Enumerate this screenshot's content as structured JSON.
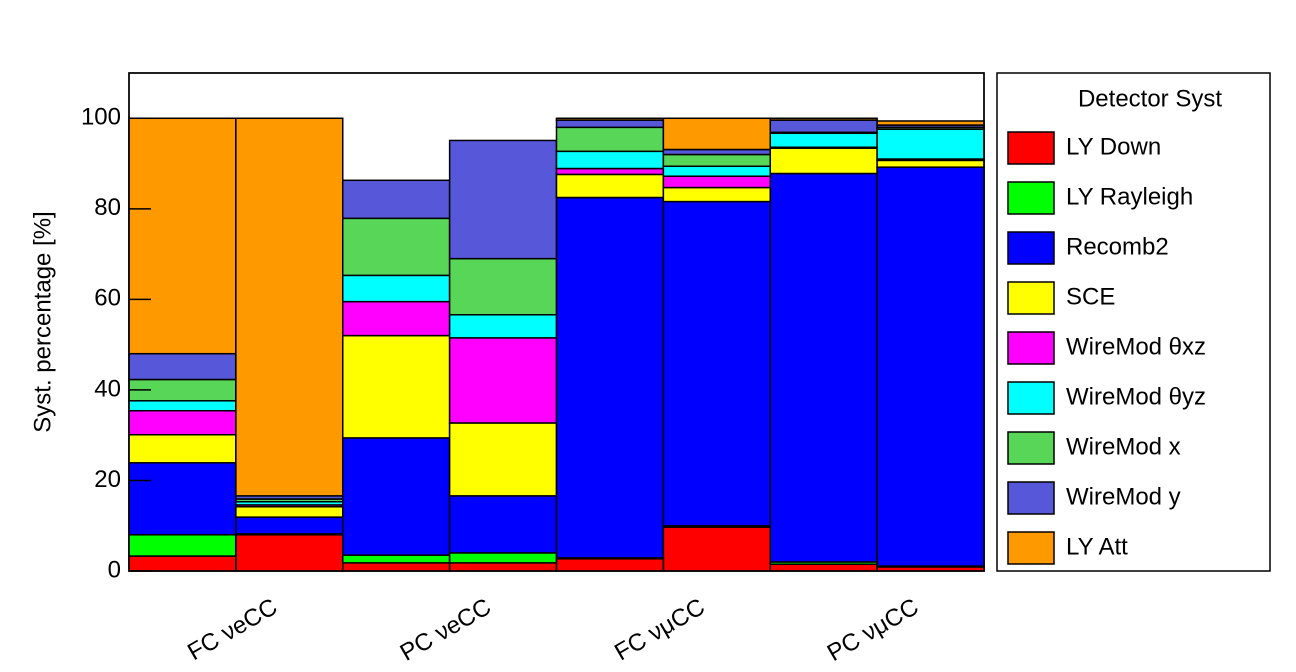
{
  "chart_data": {
    "type": "stacked_histogram",
    "ylabel": "Syst. percentage [%]",
    "legend_title": "Detector Syst",
    "bins": [
      0,
      1,
      2,
      3,
      4,
      5,
      6,
      7,
      8
    ],
    "xlim": [
      0,
      8
    ],
    "xticks": [
      {
        "value": 1,
        "label": "FC νeCC"
      },
      {
        "value": 3,
        "label": "PC νeCC"
      },
      {
        "value": 5,
        "label": "FC νμCC"
      },
      {
        "value": 7,
        "label": "PC νμCC"
      }
    ],
    "ylim": [
      0,
      110
    ],
    "yticks": [
      0,
      20,
      40,
      60,
      80,
      100
    ],
    "legend": "right",
    "series": [
      {
        "name": "LY Down",
        "color": "#ff0000",
        "values": [
          3.3,
          8.0,
          1.8,
          1.8,
          2.7,
          9.7,
          1.5,
          0.9
        ]
      },
      {
        "name": "LY Rayleigh",
        "color": "#00ff00",
        "values": [
          4.7,
          0.2,
          1.7,
          2.2,
          0.2,
          0.3,
          0.5,
          0.2
        ]
      },
      {
        "name": "Recomb2",
        "color": "#0000ff",
        "values": [
          15.9,
          3.7,
          25.9,
          12.6,
          79.6,
          71.6,
          85.8,
          88.1
        ]
      },
      {
        "name": "SCE",
        "color": "#ffff00",
        "values": [
          6.2,
          2.3,
          22.6,
          16.1,
          5.1,
          3.1,
          5.6,
          1.5
        ]
      },
      {
        "name": "WireMod θxz",
        "color": "#ff00ff",
        "values": [
          5.3,
          0.4,
          7.5,
          18.8,
          1.3,
          2.5,
          0.2,
          0.3
        ]
      },
      {
        "name": "WireMod θyz",
        "color": "#00ffff",
        "values": [
          2.2,
          0.7,
          5.8,
          5.1,
          3.8,
          2.2,
          3.1,
          6.6
        ]
      },
      {
        "name": "WireMod x",
        "color": "#57d657",
        "values": [
          4.7,
          0.6,
          12.6,
          12.4,
          5.3,
          2.6,
          0.2,
          0.4
        ]
      },
      {
        "name": "WireMod y",
        "color": "#5757d9",
        "values": [
          5.7,
          0.7,
          8.4,
          26.1,
          1.6,
          1.1,
          2.7,
          0.5
        ]
      },
      {
        "name": "LY Att",
        "color": "#ff9900",
        "values": [
          52.0,
          83.4,
          0,
          0,
          0.4,
          6.9,
          0.4,
          0.9
        ]
      }
    ]
  }
}
